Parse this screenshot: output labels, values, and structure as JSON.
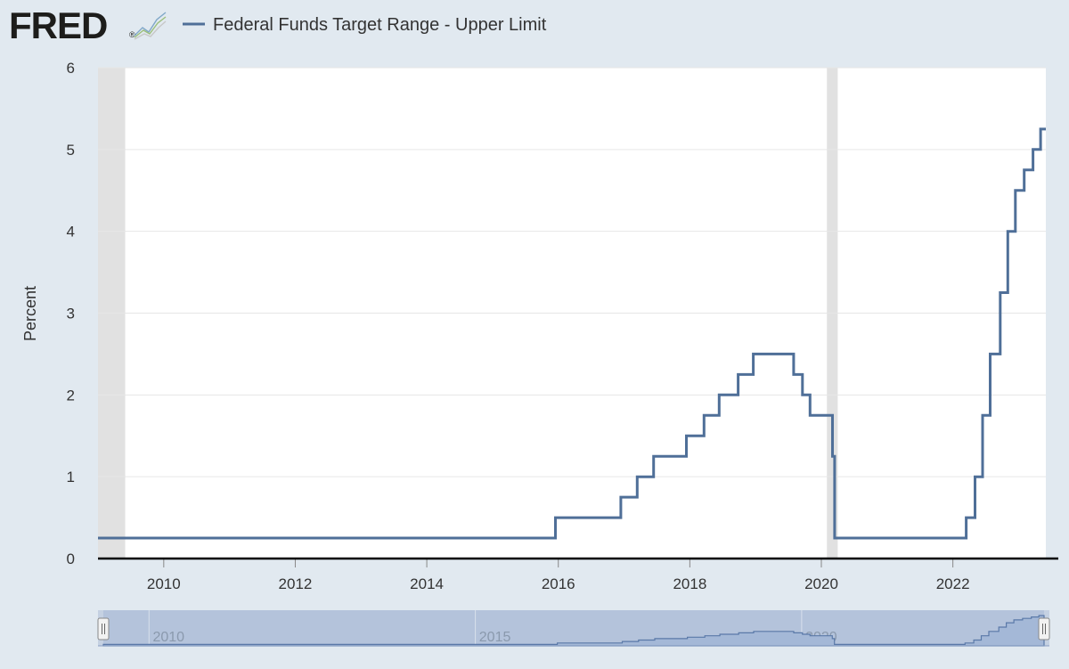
{
  "header": {
    "logo_text": "FRED",
    "logo_registered": "®",
    "logo_icon": "line-chart-icon",
    "legend_label": "Federal Funds Target Range - Upper Limit"
  },
  "colors": {
    "background": "#e1e9f0",
    "plot_bg": "#ffffff",
    "line": "#4f6f98",
    "recession": "#e1e1e1",
    "grid": "#e6e6e6",
    "axis": "#000000",
    "tick_text": "#333333",
    "navigator_fill": "#b3c3dd",
    "navigator_line": "#6b86b2",
    "logo": "#1d1d1b"
  },
  "chart_data": {
    "type": "line",
    "title": "",
    "xlabel": "",
    "ylabel": "Percent",
    "step": true,
    "xlim": [
      "2009-01-01",
      "2023-06-01"
    ],
    "ylim": [
      0,
      6
    ],
    "yticks": [
      0,
      1,
      2,
      3,
      4,
      5,
      6
    ],
    "xticks": [
      "2010",
      "2012",
      "2014",
      "2016",
      "2018",
      "2020",
      "2022"
    ],
    "grid": true,
    "legend": "top-left",
    "recessions": [
      [
        "2009-01-01",
        "2009-06-01"
      ],
      [
        "2020-02-01",
        "2020-04-01"
      ]
    ],
    "series": [
      {
        "name": "Federal Funds Target Range - Upper Limit",
        "points": [
          [
            "2009-01-01",
            0.25
          ],
          [
            "2015-12-16",
            0.5
          ],
          [
            "2016-12-14",
            0.75
          ],
          [
            "2017-03-15",
            1.0
          ],
          [
            "2017-06-14",
            1.25
          ],
          [
            "2017-12-13",
            1.5
          ],
          [
            "2018-03-21",
            1.75
          ],
          [
            "2018-06-13",
            2.0
          ],
          [
            "2018-09-26",
            2.25
          ],
          [
            "2018-12-19",
            2.5
          ],
          [
            "2019-07-31",
            2.25
          ],
          [
            "2019-09-18",
            2.0
          ],
          [
            "2019-10-30",
            1.75
          ],
          [
            "2020-03-03",
            1.25
          ],
          [
            "2020-03-15",
            0.25
          ],
          [
            "2022-03-16",
            0.5
          ],
          [
            "2022-05-04",
            1.0
          ],
          [
            "2022-06-15",
            1.75
          ],
          [
            "2022-07-27",
            2.5
          ],
          [
            "2022-09-21",
            3.25
          ],
          [
            "2022-11-02",
            4.0
          ],
          [
            "2022-12-14",
            4.5
          ],
          [
            "2023-02-01",
            4.75
          ],
          [
            "2023-03-22",
            5.0
          ],
          [
            "2023-05-03",
            5.25
          ],
          [
            "2023-06-01",
            5.25
          ]
        ]
      }
    ],
    "navigator": {
      "labels": [
        "2010",
        "2015",
        "2020"
      ]
    }
  }
}
